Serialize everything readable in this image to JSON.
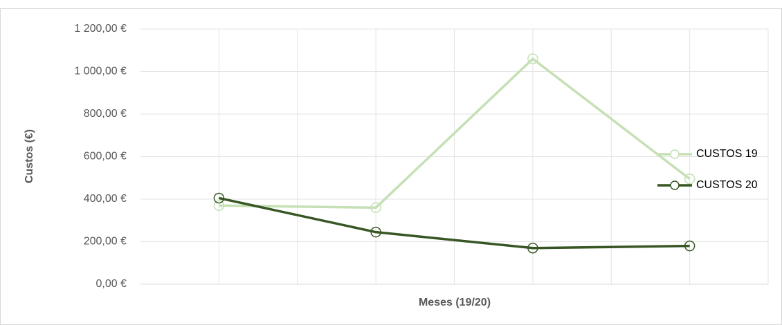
{
  "chart_data": {
    "type": "line",
    "x_label": "Meses (19/20)",
    "y_label": "Custos (€)",
    "categories": [
      null,
      null,
      null,
      null
    ],
    "series": [
      {
        "name": "CUSTOS 19",
        "color": "#c5e0b4",
        "values": [
          370,
          360,
          1060,
          495
        ]
      },
      {
        "name": "CUSTOS 20",
        "color": "#375623",
        "values": [
          405,
          245,
          170,
          180
        ]
      }
    ],
    "ylim": [
      0,
      1200
    ],
    "yticks": [
      {
        "value": 0,
        "label": "0,00 €"
      },
      {
        "value": 200,
        "label": "200,00 €"
      },
      {
        "value": 400,
        "label": "400,00 €"
      },
      {
        "value": 600,
        "label": "600,00 €"
      },
      {
        "value": 800,
        "label": "800,00 €"
      },
      {
        "value": 1000,
        "label": "1 000,00 €"
      },
      {
        "value": 1200,
        "label": "1 200,00 €"
      }
    ],
    "grid": true,
    "legend": "right"
  }
}
